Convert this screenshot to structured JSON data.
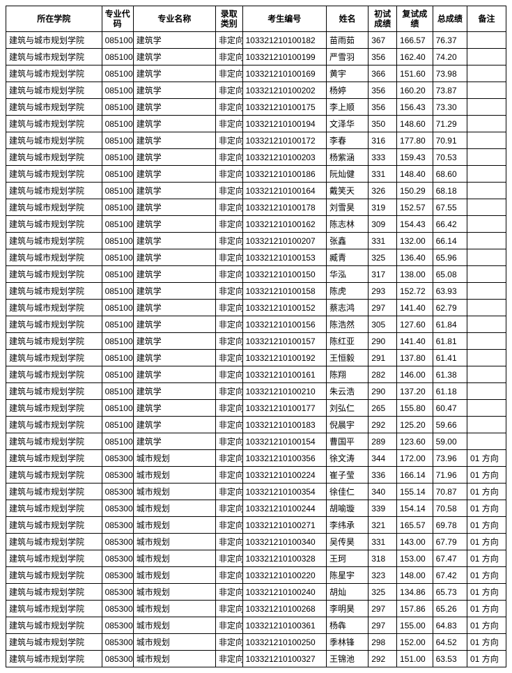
{
  "table": {
    "header_font_weight": "bold",
    "font_size": 12,
    "border_color": "#000000",
    "background_color": "#ffffff",
    "text_color": "#000000",
    "columns": [
      {
        "key": "college",
        "label": "所在学院",
        "width": 128,
        "header_align": "center"
      },
      {
        "key": "code",
        "label": "专业代码",
        "width": 42,
        "header_align": "center"
      },
      {
        "key": "major",
        "label": "专业名称",
        "width": 110,
        "header_align": "center"
      },
      {
        "key": "cat",
        "label": "录取类别",
        "width": 36,
        "header_align": "center"
      },
      {
        "key": "examno",
        "label": "考生编号",
        "width": 112,
        "header_align": "center"
      },
      {
        "key": "name",
        "label": "姓名",
        "width": 56,
        "header_align": "center"
      },
      {
        "key": "first",
        "label": "初试成绩",
        "width": 38,
        "header_align": "center"
      },
      {
        "key": "retest",
        "label": "复试成绩",
        "width": 48,
        "header_align": "center"
      },
      {
        "key": "total",
        "label": "总成绩",
        "width": 46,
        "header_align": "center"
      },
      {
        "key": "remark",
        "label": "备注",
        "width": 52,
        "header_align": "center"
      }
    ],
    "rows": [
      [
        "建筑与城市规划学院",
        "085100",
        "建筑学",
        "非定向",
        "103321210100182",
        "苗雨茹",
        "367",
        "166.57",
        "76.37",
        ""
      ],
      [
        "建筑与城市规划学院",
        "085100",
        "建筑学",
        "非定向",
        "103321210100199",
        "严雪羽",
        "356",
        "162.40",
        "74.20",
        ""
      ],
      [
        "建筑与城市规划学院",
        "085100",
        "建筑学",
        "非定向",
        "103321210100169",
        "黄宇",
        "366",
        "151.60",
        "73.98",
        ""
      ],
      [
        "建筑与城市规划学院",
        "085100",
        "建筑学",
        "非定向",
        "103321210100202",
        "杨婷",
        "356",
        "160.20",
        "73.87",
        ""
      ],
      [
        "建筑与城市规划学院",
        "085100",
        "建筑学",
        "非定向",
        "103321210100175",
        "李上顺",
        "356",
        "156.43",
        "73.30",
        ""
      ],
      [
        "建筑与城市规划学院",
        "085100",
        "建筑学",
        "非定向",
        "103321210100194",
        "文泽华",
        "350",
        "148.60",
        "71.29",
        ""
      ],
      [
        "建筑与城市规划学院",
        "085100",
        "建筑学",
        "非定向",
        "103321210100172",
        "李春",
        "316",
        "177.80",
        "70.91",
        ""
      ],
      [
        "建筑与城市规划学院",
        "085100",
        "建筑学",
        "非定向",
        "103321210100203",
        "杨紫涵",
        "333",
        "159.43",
        "70.53",
        ""
      ],
      [
        "建筑与城市规划学院",
        "085100",
        "建筑学",
        "非定向",
        "103321210100186",
        "阮灿健",
        "331",
        "148.40",
        "68.60",
        ""
      ],
      [
        "建筑与城市规划学院",
        "085100",
        "建筑学",
        "非定向",
        "103321210100164",
        "戴笑天",
        "326",
        "150.29",
        "68.18",
        ""
      ],
      [
        "建筑与城市规划学院",
        "085100",
        "建筑学",
        "非定向",
        "103321210100178",
        "刘雪昊",
        "319",
        "152.57",
        "67.55",
        ""
      ],
      [
        "建筑与城市规划学院",
        "085100",
        "建筑学",
        "非定向",
        "103321210100162",
        "陈志林",
        "309",
        "154.43",
        "66.42",
        ""
      ],
      [
        "建筑与城市规划学院",
        "085100",
        "建筑学",
        "非定向",
        "103321210100207",
        "张鑫",
        "331",
        "132.00",
        "66.14",
        ""
      ],
      [
        "建筑与城市规划学院",
        "085100",
        "建筑学",
        "非定向",
        "103321210100153",
        "臧青",
        "325",
        "136.40",
        "65.96",
        ""
      ],
      [
        "建筑与城市规划学院",
        "085100",
        "建筑学",
        "非定向",
        "103321210100150",
        "华泓",
        "317",
        "138.00",
        "65.08",
        ""
      ],
      [
        "建筑与城市规划学院",
        "085100",
        "建筑学",
        "非定向",
        "103321210100158",
        "陈虎",
        "293",
        "152.72",
        "63.93",
        ""
      ],
      [
        "建筑与城市规划学院",
        "085100",
        "建筑学",
        "非定向",
        "103321210100152",
        "蔡志鸿",
        "297",
        "141.40",
        "62.79",
        ""
      ],
      [
        "建筑与城市规划学院",
        "085100",
        "建筑学",
        "非定向",
        "103321210100156",
        "陈浩然",
        "305",
        "127.60",
        "61.84",
        ""
      ],
      [
        "建筑与城市规划学院",
        "085100",
        "建筑学",
        "非定向",
        "103321210100157",
        "陈红亚",
        "290",
        "141.40",
        "61.81",
        ""
      ],
      [
        "建筑与城市规划学院",
        "085100",
        "建筑学",
        "非定向",
        "103321210100192",
        "王恒毅",
        "291",
        "137.80",
        "61.41",
        ""
      ],
      [
        "建筑与城市规划学院",
        "085100",
        "建筑学",
        "非定向",
        "103321210100161",
        "陈翔",
        "282",
        "146.00",
        "61.38",
        ""
      ],
      [
        "建筑与城市规划学院",
        "085100",
        "建筑学",
        "非定向",
        "103321210100210",
        "朱云浩",
        "290",
        "137.20",
        "61.18",
        ""
      ],
      [
        "建筑与城市规划学院",
        "085100",
        "建筑学",
        "非定向",
        "103321210100177",
        "刘弘仁",
        "265",
        "155.80",
        "60.47",
        ""
      ],
      [
        "建筑与城市规划学院",
        "085100",
        "建筑学",
        "非定向",
        "103321210100183",
        "倪晨宇",
        "292",
        "125.20",
        "59.66",
        ""
      ],
      [
        "建筑与城市规划学院",
        "085100",
        "建筑学",
        "非定向",
        "103321210100154",
        "曹国平",
        "289",
        "123.60",
        "59.00",
        ""
      ],
      [
        "建筑与城市规划学院",
        "085300",
        "城市规划",
        "非定向",
        "103321210100356",
        "徐文涛",
        "344",
        "172.00",
        "73.96",
        "01 方向"
      ],
      [
        "建筑与城市规划学院",
        "085300",
        "城市规划",
        "非定向",
        "103321210100224",
        "崔子莹",
        "336",
        "166.14",
        "71.96",
        "01 方向"
      ],
      [
        "建筑与城市规划学院",
        "085300",
        "城市规划",
        "非定向",
        "103321210100354",
        "徐佳仁",
        "340",
        "155.14",
        "70.87",
        "01 方向"
      ],
      [
        "建筑与城市规划学院",
        "085300",
        "城市规划",
        "非定向",
        "103321210100244",
        "胡喻璇",
        "339",
        "154.14",
        "70.58",
        "01 方向"
      ],
      [
        "建筑与城市规划学院",
        "085300",
        "城市规划",
        "非定向",
        "103321210100271",
        "李纬承",
        "321",
        "165.57",
        "69.78",
        "01 方向"
      ],
      [
        "建筑与城市规划学院",
        "085300",
        "城市规划",
        "非定向",
        "103321210100340",
        "吴传昊",
        "331",
        "143.00",
        "67.79",
        "01 方向"
      ],
      [
        "建筑与城市规划学院",
        "085300",
        "城市规划",
        "非定向",
        "103321210100328",
        "王珂",
        "318",
        "153.00",
        "67.47",
        "01 方向"
      ],
      [
        "建筑与城市规划学院",
        "085300",
        "城市规划",
        "非定向",
        "103321210100220",
        "陈星宇",
        "323",
        "148.00",
        "67.42",
        "01 方向"
      ],
      [
        "建筑与城市规划学院",
        "085300",
        "城市规划",
        "非定向",
        "103321210100240",
        "胡灿",
        "325",
        "134.86",
        "65.73",
        "01 方向"
      ],
      [
        "建筑与城市规划学院",
        "085300",
        "城市规划",
        "非定向",
        "103321210100268",
        "李明昊",
        "297",
        "157.86",
        "65.26",
        "01 方向"
      ],
      [
        "建筑与城市规划学院",
        "085300",
        "城市规划",
        "非定向",
        "103321210100361",
        "杨犇",
        "297",
        "155.00",
        "64.83",
        "01 方向"
      ],
      [
        "建筑与城市规划学院",
        "085300",
        "城市规划",
        "非定向",
        "103321210100250",
        "季林锋",
        "298",
        "152.00",
        "64.52",
        "01 方向"
      ],
      [
        "建筑与城市规划学院",
        "085300",
        "城市规划",
        "非定向",
        "103321210100327",
        "王锦池",
        "292",
        "151.00",
        "63.53",
        "01 方向"
      ]
    ]
  }
}
